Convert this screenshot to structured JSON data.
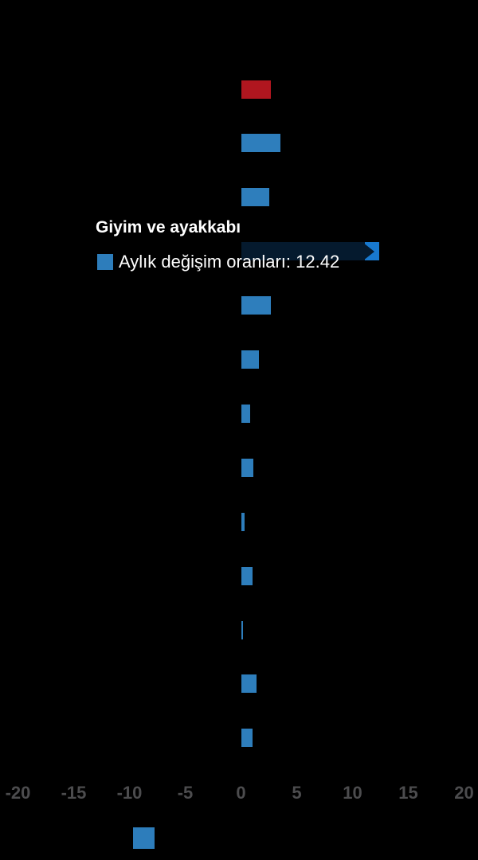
{
  "chart_data": {
    "type": "bar",
    "orientation": "horizontal",
    "title": "",
    "background_color": "#000000",
    "x_axis": {
      "ticks": [
        "-20",
        "-15",
        "-10",
        "-5",
        "0",
        "5",
        "10",
        "15",
        "20"
      ],
      "tick_values": [
        -20,
        -15,
        -10,
        -5,
        0,
        5,
        10,
        15,
        20
      ],
      "range": [
        -20,
        20
      ],
      "label_color": "#4c4c4e"
    },
    "series": [
      {
        "name": "Aylık değişim oranları",
        "categories": [
          "",
          "",
          "",
          "Giyim ve ayakkabı",
          "",
          "",
          "",
          "",
          "",
          "",
          "",
          "",
          ""
        ],
        "values": [
          2.7,
          3.5,
          2.5,
          12.42,
          2.7,
          1.6,
          0.8,
          1.1,
          0.35,
          1.0,
          0.15,
          1.4,
          1.0
        ],
        "colors": [
          "#b0161f",
          "#2e7ebc",
          "#2e7ebc",
          "#1879cf",
          "#2e7ebc",
          "#2e7ebc",
          "#2e7ebc",
          "#2e7ebc",
          "#2e7ebc",
          "#2e7ebc",
          "#2e7ebc",
          "#2e7ebc",
          "#2e7ebc"
        ]
      }
    ],
    "highlighted_index": 3,
    "grid": false,
    "legend_position": "bottom"
  },
  "tooltip": {
    "title": "Giyim ve ayakkabı",
    "text": "Aylık değişim oranları: 12.42",
    "marker_color": "#2d7dbb",
    "overlay_color": "rgba(0,0,0,0.78)"
  },
  "legend": {
    "marker_color": "#2d7dbb"
  }
}
